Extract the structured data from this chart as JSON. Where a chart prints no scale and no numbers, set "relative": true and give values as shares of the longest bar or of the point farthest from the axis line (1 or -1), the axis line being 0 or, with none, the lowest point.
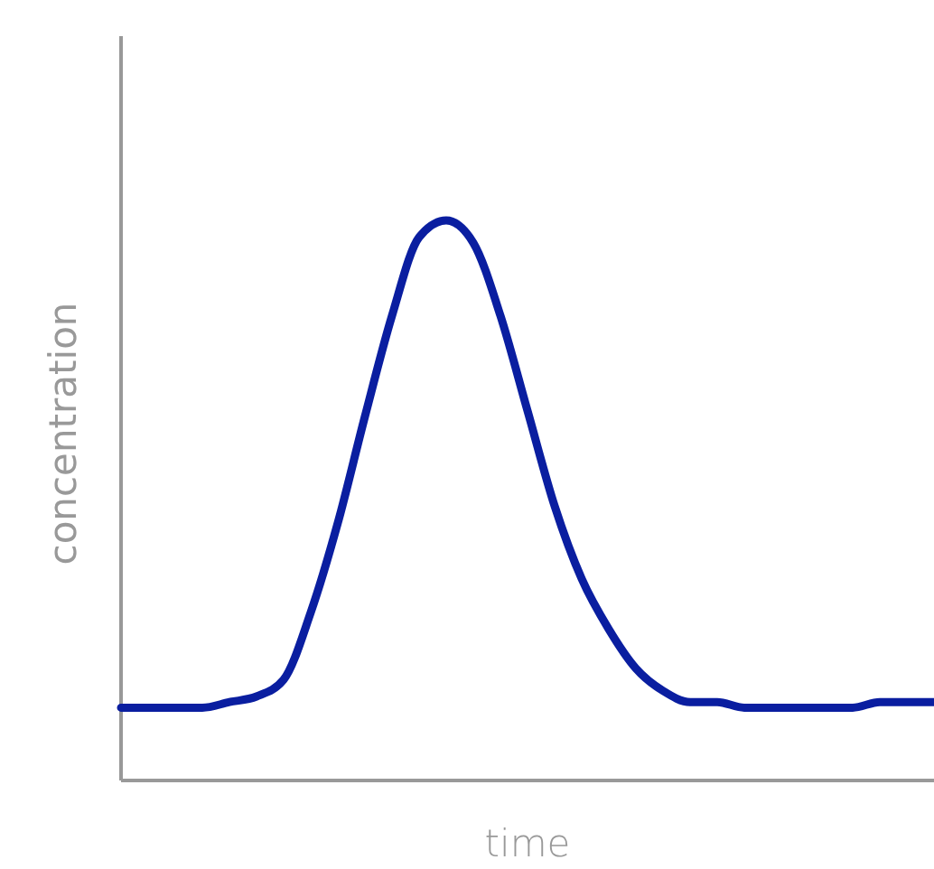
{
  "chart_data": {
    "type": "line",
    "xlabel": "time",
    "ylabel": "concentration",
    "relative": true,
    "categories": [
      null,
      null,
      null,
      null,
      null,
      null,
      null,
      null,
      null,
      null,
      null,
      null,
      null,
      null,
      null,
      null,
      null,
      null,
      null,
      null,
      null,
      null,
      null,
      null,
      null,
      null,
      null,
      null,
      null,
      null,
      null
    ],
    "series": [
      {
        "color": "#0a1ea0",
        "values": [
          0.13,
          0.13,
          0.13,
          0.13,
          0.14,
          0.15,
          0.18,
          0.3,
          0.46,
          0.65,
          0.83,
          0.97,
          1,
          0.96,
          0.83,
          0.66,
          0.49,
          0.36,
          0.27,
          0.2,
          0.16,
          0.14,
          0.14,
          0.13,
          0.13,
          0.13,
          0.13,
          0.13,
          0.14,
          0.14,
          0.14
        ]
      }
    ]
  }
}
